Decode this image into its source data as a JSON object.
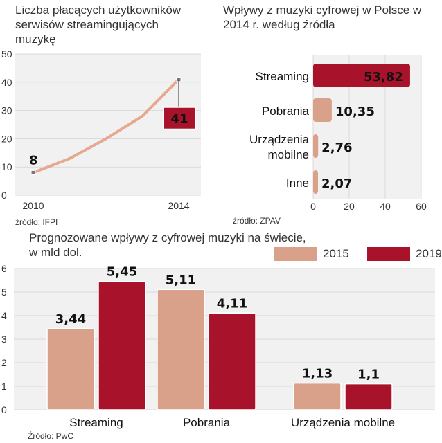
{
  "colors": {
    "c2015": "#D9A08A",
    "c2019": "#A8122A",
    "line": "#E5A98F",
    "panel": "#F1F1F1",
    "grid": "#D9D9D9"
  },
  "chart_data": [
    {
      "type": "line",
      "title": "Liczba płacących użytkowników serwisów streamingujących muzykę",
      "source": "źródło: IFPI",
      "x": [
        2010,
        2011,
        2012,
        2013,
        2014
      ],
      "values": [
        8,
        13,
        20,
        28,
        41
      ],
      "x_tick_labels": [
        "2010",
        "2014"
      ],
      "y_ticks": [
        "0",
        "10",
        "20",
        "30",
        "40",
        "50"
      ],
      "ylim": [
        0,
        50
      ],
      "labels": {
        "first": "8",
        "last": "41"
      }
    },
    {
      "type": "bar",
      "orientation": "horizontal",
      "title": "Wpływy z muzyki cyfrowej w Polsce w 2014 r. według źródła",
      "source": "źródło: ZPAV",
      "categories": [
        "Streaming",
        "Pobrania",
        "Urządzenia mobilne",
        "Inne"
      ],
      "category_lines": [
        [
          "Streaming"
        ],
        [
          "Pobrania"
        ],
        [
          "Urządzenia",
          "mobilne"
        ],
        [
          "Inne"
        ]
      ],
      "values": [
        53.82,
        10.35,
        2.76,
        2.07
      ],
      "value_labels": [
        "53,82",
        "10,35",
        "2,76",
        "2,07"
      ],
      "x_ticks": [
        "0",
        "20",
        "40",
        "60"
      ],
      "xlim": [
        0,
        60
      ]
    },
    {
      "type": "bar",
      "title": "Prognozowane wpływy z  cyfrowej muzyki na świecie,",
      "title_line2": "w mld dol.",
      "source": "Źródło: PwC",
      "categories": [
        "Streaming",
        "Pobrania",
        "Urządzenia mobilne"
      ],
      "series": [
        {
          "name": "2015",
          "values": [
            3.44,
            5.11,
            1.13
          ],
          "labels": [
            "3,44",
            "5,11",
            "1,13"
          ]
        },
        {
          "name": "2019",
          "values": [
            5.45,
            4.11,
            1.1
          ],
          "labels": [
            "5,45",
            "4,11",
            "1,1"
          ]
        }
      ],
      "y_ticks": [
        "0",
        "1",
        "2",
        "3",
        "4",
        "5",
        "6"
      ],
      "ylim": [
        0,
        6
      ]
    }
  ]
}
